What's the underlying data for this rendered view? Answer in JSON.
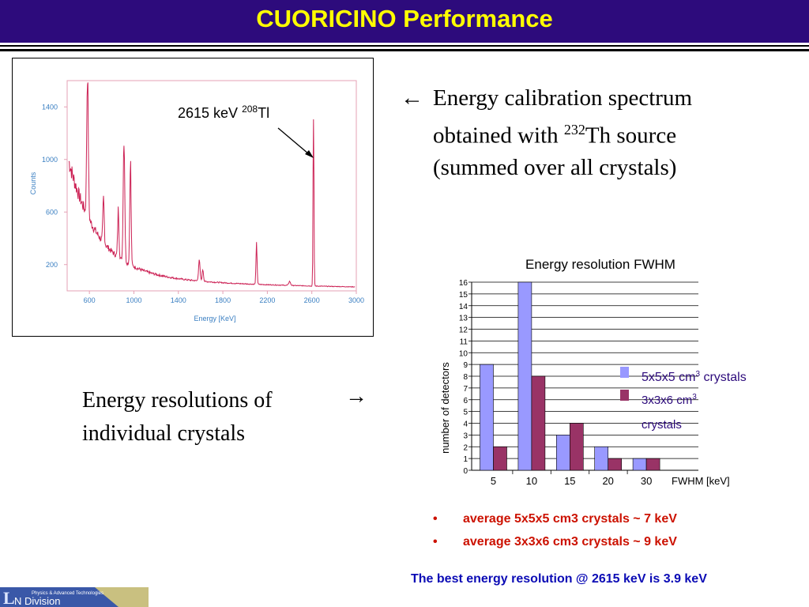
{
  "slide": {
    "title": "CUORICINO Performance",
    "bar_color": "#2d0b7c",
    "title_color": "#ffff00"
  },
  "spectrum": {
    "annotation_prefix": "2615 keV ",
    "annotation_isotope_mass": "208",
    "annotation_element": "Tl",
    "ylabel": "Counts",
    "xlabel": "Energy  [KeV]",
    "yticks": [
      "1400",
      "1000",
      "600",
      "200"
    ],
    "xticks": [
      "600",
      "1000",
      "1400",
      "1800",
      "2200",
      "2600",
      "3000"
    ],
    "line_color": "#cc2255"
  },
  "description_1": {
    "arrow": "←",
    "line1": "Energy calibration spectrum",
    "line2_prefix": "obtained with ",
    "line2_sup": "232",
    "line2_suffix": "Th source",
    "line3": "(summed over all crystals)"
  },
  "description_2": {
    "text": "Energy resolutions of individual crystals",
    "arrow": "→"
  },
  "chart_data": {
    "type": "bar",
    "title": "Energy resolution FWHM",
    "xlabel": "FWHM [keV]",
    "ylabel": "number of detectors",
    "categories": [
      "5",
      "10",
      "15",
      "20",
      "30"
    ],
    "ylim": [
      0,
      16
    ],
    "yticks": [
      "0",
      "1",
      "2",
      "3",
      "4",
      "5",
      "6",
      "7",
      "8",
      "9",
      "10",
      "11",
      "12",
      "13",
      "14",
      "15",
      "16"
    ],
    "series": [
      {
        "name_prefix": "5x5x5 cm",
        "name_sup": "3",
        "name_suffix": " crystals",
        "color": "#9999ff",
        "values": [
          9,
          16,
          3,
          2,
          1
        ]
      },
      {
        "name_prefix": "3x3x6 cm",
        "name_sup": "3",
        "name_suffix": "crystals",
        "color": "#993366",
        "values": [
          2,
          8,
          4,
          1,
          1
        ]
      }
    ],
    "legend_text_color": "#2d0b7c",
    "grid": true
  },
  "bullets": [
    "average 5x5x5 cm3 crystals ~ 7 keV",
    "average 3x3x6 cm3 crystals ~ 9 keV"
  ],
  "bullet_marker": "•",
  "conclusion": "The best energy resolution @ 2615 keV is 3.9 keV",
  "logo": {
    "line1": "Physics & Advanced Technologies",
    "main": "N Division"
  }
}
